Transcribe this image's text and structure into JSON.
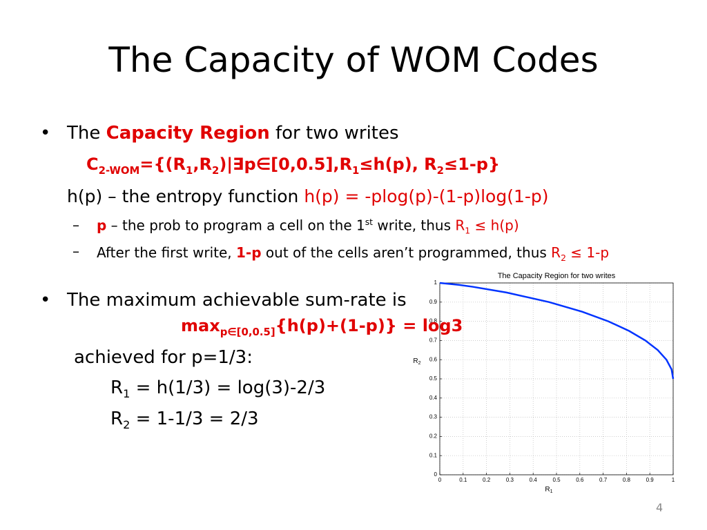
{
  "title": "The Capacity of WOM Codes",
  "lines": [
    [
      "The ",
      "Capacity Region",
      " for two writes"
    ],
    [
      "C",
      "2-WOM",
      "={(R",
      "1",
      ",R",
      "2",
      ")|∃p∈[0,0.5],R",
      "1",
      "≤h(p), R",
      "2",
      "≤1-p}"
    ],
    [
      "h(p) – the entropy function ",
      "h(p) = -plog(p)-(1-p)log(1-p)"
    ],
    [
      "p",
      " – the prob to program a cell on the 1",
      "st",
      " write, thus ",
      "R",
      "1",
      " ≤ h(p)"
    ],
    [
      "After the first write, ",
      "1-p",
      " out of the cells aren’t programmed, thus ",
      "R",
      "2",
      " ≤ 1-p"
    ],
    [
      "The maximum achievable sum-rate is"
    ],
    [
      "max",
      "p∈[0,0.5]",
      "{h(p)+(1-p)} = log3"
    ],
    [
      "achieved for p=1/3:"
    ],
    [
      "R",
      "1",
      " = h(1/3) = log(3)-2/3"
    ],
    [
      "R",
      "2",
      " = 1-1/3 = 2/3"
    ]
  ],
  "page_number": "4",
  "chart_data": {
    "type": "line",
    "title": "The Capacity Region for two writes",
    "x_label": [
      "R",
      "1"
    ],
    "y_label": [
      "R",
      "2"
    ],
    "x": [
      0,
      0.081,
      0.141,
      0.286,
      0.469,
      0.61,
      0.722,
      0.811,
      0.881,
      0.934,
      0.971,
      0.993,
      1
    ],
    "values": [
      1,
      0.99,
      0.98,
      0.95,
      0.9,
      0.85,
      0.8,
      0.75,
      0.7,
      0.65,
      0.6,
      0.55,
      0.5
    ],
    "color": "#0033ff",
    "xlim": [
      0,
      1
    ],
    "ylim": [
      0,
      1
    ],
    "xticks": [
      0,
      0.1,
      0.2,
      0.3,
      0.4,
      0.5,
      0.6,
      0.7,
      0.8,
      0.9,
      1
    ],
    "yticks": [
      0,
      0.1,
      0.2,
      0.3,
      0.4,
      0.5,
      0.6,
      0.7,
      0.8,
      0.9,
      1
    ],
    "grid": true
  }
}
